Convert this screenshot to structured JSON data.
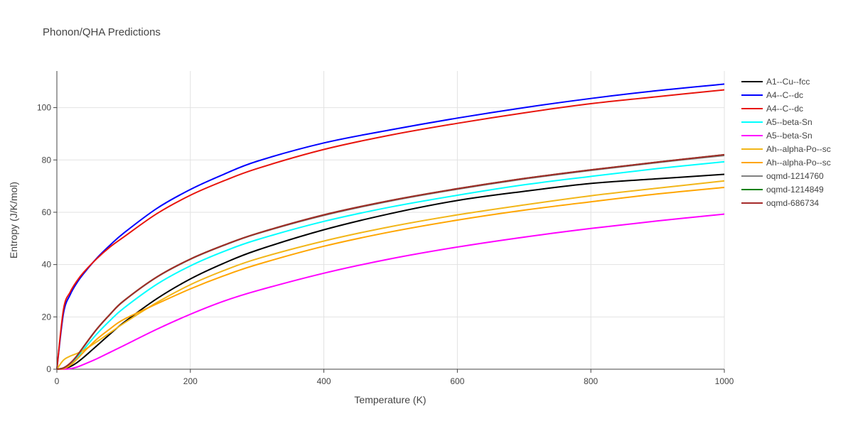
{
  "chart_data": {
    "type": "line",
    "title": "Phonon/QHA Predictions",
    "xlabel": "Temperature (K)",
    "ylabel": "Entropy (J/K/mol)",
    "xlim": [
      0,
      1000
    ],
    "ylim": [
      0,
      114
    ],
    "xticks": [
      0,
      200,
      400,
      600,
      800,
      1000
    ],
    "yticks": [
      0,
      20,
      40,
      60,
      80,
      100
    ],
    "grid": true,
    "legend_position": "right",
    "series": [
      {
        "name": "A1--Cu--fcc",
        "color": "#000000",
        "x": [
          0,
          10,
          20,
          30,
          40,
          60,
          80,
          100,
          150,
          200,
          250,
          300,
          400,
          500,
          600,
          700,
          800,
          900,
          1000
        ],
        "y": [
          0,
          0.2,
          1.0,
          2.5,
          4.5,
          9.0,
          13.5,
          17.8,
          27.0,
          34.5,
          40.5,
          45.5,
          53.3,
          59.5,
          64.5,
          68.0,
          71.0,
          72.8,
          74.5
        ]
      },
      {
        "name": "A4--C--dc",
        "color": "#0000ff",
        "x": [
          0,
          10,
          20,
          30,
          40,
          60,
          80,
          100,
          150,
          200,
          250,
          300,
          400,
          500,
          600,
          700,
          800,
          900,
          1000
        ],
        "y": [
          0,
          21.5,
          28.5,
          33.0,
          36.5,
          42.5,
          47.5,
          52.0,
          61.5,
          68.7,
          74.5,
          79.5,
          86.5,
          91.5,
          96.0,
          100.0,
          103.5,
          106.5,
          109.0
        ]
      },
      {
        "name": "A4--C--dc",
        "color": "#e8140c",
        "x": [
          0,
          10,
          20,
          30,
          40,
          60,
          80,
          100,
          150,
          200,
          250,
          300,
          400,
          500,
          600,
          700,
          800,
          900,
          1000
        ],
        "y": [
          0,
          23.0,
          29.5,
          33.7,
          37.0,
          42.3,
          46.8,
          50.5,
          59.5,
          66.5,
          72.0,
          76.7,
          84.0,
          89.5,
          94.0,
          98.0,
          101.5,
          104.2,
          106.8
        ]
      },
      {
        "name": "A5--beta-Sn",
        "color": "#00ffff",
        "x": [
          0,
          10,
          20,
          30,
          40,
          60,
          80,
          100,
          150,
          200,
          250,
          300,
          400,
          500,
          600,
          700,
          800,
          900,
          1000
        ],
        "y": [
          0,
          0.5,
          2.0,
          4.5,
          7.5,
          13.5,
          18.7,
          23.3,
          32.5,
          39.5,
          45.0,
          49.5,
          56.5,
          62.0,
          66.5,
          70.5,
          73.7,
          76.7,
          79.3
        ]
      },
      {
        "name": "A5--beta-Sn",
        "color": "#ff00ff",
        "x": [
          0,
          10,
          20,
          30,
          40,
          60,
          80,
          100,
          150,
          200,
          250,
          300,
          400,
          500,
          600,
          700,
          800,
          900,
          1000
        ],
        "y": [
          0,
          0,
          0.2,
          0.8,
          1.8,
          4.0,
          6.5,
          9.0,
          15.3,
          21.0,
          26.0,
          30.0,
          36.7,
          42.2,
          46.7,
          50.5,
          53.8,
          56.7,
          59.3
        ]
      },
      {
        "name": "Ah--alpha-Po--sc",
        "color": "#f2b619",
        "x": [
          0,
          10,
          20,
          30,
          40,
          60,
          80,
          100,
          150,
          200,
          250,
          300,
          400,
          500,
          600,
          700,
          800,
          900,
          1000
        ],
        "y": [
          0,
          3.5,
          5.0,
          6.0,
          7.2,
          10.5,
          14.0,
          17.5,
          25.5,
          32.3,
          37.7,
          42.2,
          49.0,
          54.5,
          59.0,
          62.8,
          66.3,
          69.2,
          72.0
        ]
      },
      {
        "name": "Ah--alpha-Po--sc",
        "color": "#ffa500",
        "x": [
          0,
          10,
          20,
          30,
          40,
          60,
          80,
          100,
          150,
          200,
          250,
          300,
          400,
          500,
          600,
          700,
          800,
          900,
          1000
        ],
        "y": [
          0,
          0.2,
          1.5,
          3.8,
          6.5,
          11.5,
          15.5,
          19.0,
          25.0,
          30.7,
          35.7,
          40.0,
          47.0,
          52.5,
          57.0,
          60.8,
          64.0,
          67.0,
          69.5
        ]
      },
      {
        "name": "oqmd-1214760",
        "color": "#808080",
        "x": [
          0,
          10,
          20,
          30,
          40,
          60,
          80,
          100,
          150,
          200,
          250,
          300,
          400,
          500,
          600,
          700,
          800,
          900,
          1000
        ],
        "y": [
          0,
          0.5,
          2.2,
          5.0,
          8.5,
          15.3,
          21.0,
          26.0,
          35.2,
          42.0,
          47.3,
          51.8,
          58.8,
          64.3,
          68.8,
          72.7,
          76.0,
          79.0,
          81.7
        ]
      },
      {
        "name": "oqmd-1214849",
        "color": "#008000",
        "x": [
          0,
          10,
          20,
          30,
          40,
          60,
          80,
          100,
          150,
          200,
          250,
          300,
          400,
          500,
          600,
          700,
          800,
          900,
          1000
        ],
        "y": [
          0,
          0.5,
          2.3,
          5.1,
          8.6,
          15.4,
          21.1,
          26.1,
          35.3,
          42.1,
          47.4,
          51.9,
          59.0,
          64.5,
          69.0,
          72.9,
          76.2,
          79.2,
          82.0
        ]
      },
      {
        "name": "oqmd-686734",
        "color": "#a52a2a",
        "x": [
          0,
          10,
          20,
          30,
          40,
          60,
          80,
          100,
          150,
          200,
          250,
          300,
          400,
          500,
          600,
          700,
          800,
          900,
          1000
        ],
        "y": [
          0,
          0.5,
          2.3,
          5.1,
          8.6,
          15.4,
          21.1,
          26.1,
          35.3,
          42.1,
          47.4,
          51.9,
          59.0,
          64.5,
          69.0,
          72.9,
          76.2,
          79.2,
          82.0
        ]
      }
    ]
  }
}
